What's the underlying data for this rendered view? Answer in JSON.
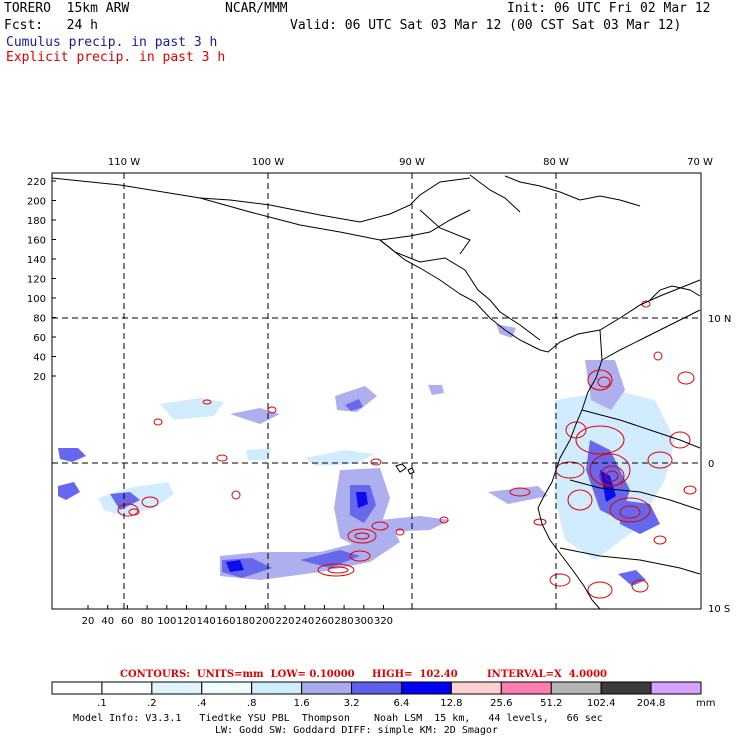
{
  "header": {
    "model": "TORERO  15km ARW",
    "center": "NCAR/MMM",
    "init": "Init: 06 UTC Fri 02 Mar 12",
    "fcst": "Fcst:   24 h",
    "valid": "Valid: 06 UTC Sat 03 Mar 12 (00 CST Sat 03 Mar 12)",
    "cumulus": "Cumulus precip. in past 3 h",
    "explicit": "Explicit precip. in past 3 h"
  },
  "map": {
    "lon_labels": [
      "110 W",
      "100 W",
      "90 W",
      "80 W",
      "70 W"
    ],
    "lat_labels": [
      "10 N",
      "0",
      "10 S"
    ],
    "y_ticks": [
      "220",
      "200",
      "180",
      "160",
      "140",
      "120",
      "100",
      "80",
      "60",
      "40",
      "20"
    ],
    "x_ticks": [
      "20",
      "40",
      "60",
      "80",
      "100",
      "120",
      "140",
      "160",
      "180",
      "200",
      "220",
      "240",
      "260",
      "280",
      "300",
      "320"
    ]
  },
  "contours_line": {
    "label": "CONTOURS:  UNITS=mm  LOW= 0.10000",
    "high": "HIGH=  102.40",
    "interval": "INTERVAL=X  4.0000"
  },
  "colorbar": {
    "colors": [
      "#ffffff",
      "#ffffff",
      "#dff4ff",
      "#f0fdff",
      "#d0ecff",
      "#a9abef",
      "#6060ec",
      "#0000f0",
      "#ffd0d0",
      "#ff80b0",
      "#b4b4b4",
      "#3c3c3c",
      "#d8a0ff"
    ],
    "labels": [
      ".1",
      ".2",
      ".4",
      ".8",
      "1.6",
      "3.2",
      "6.4",
      "12.8",
      "25.6",
      "51.2",
      "102.4",
      "204.8"
    ],
    "unit": "mm"
  },
  "footer": {
    "line1": "Model Info: V3.3.1   Tiedtke YSU PBL  Thompson    Noah LSM  15 km,   44 levels,   66 sec",
    "line2": "LW: Godd SW: Goddard DIFF: simple KM: 2D Smagor"
  }
}
